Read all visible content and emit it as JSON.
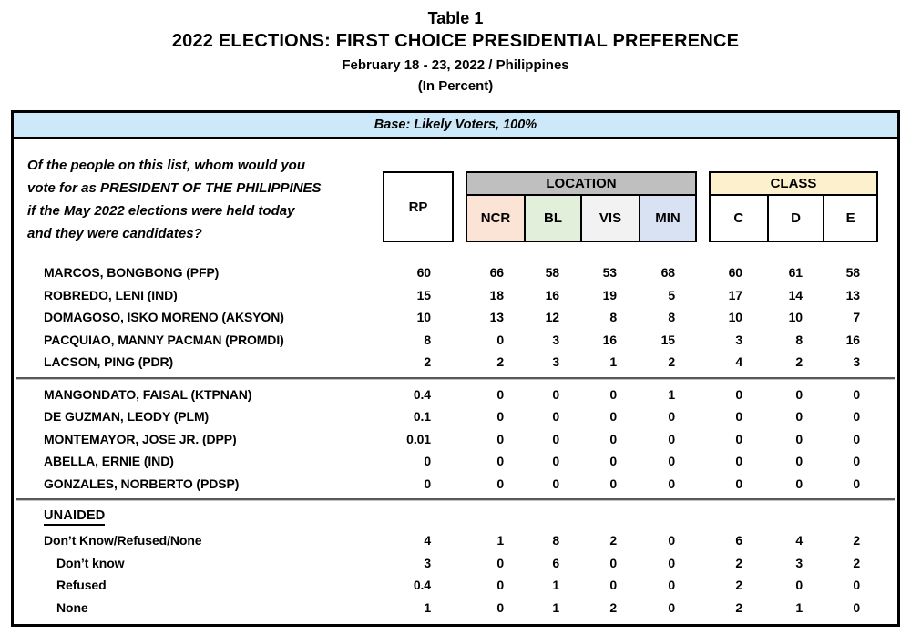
{
  "page_header": {
    "table_label": "Table 1",
    "title": "2022 ELECTIONS: FIRST CHOICE PRESIDENTIAL PREFERENCE",
    "subtitle": "February 18 - 23, 2022 / Philippines",
    "unit_note": "(In Percent)"
  },
  "base_label": "Base: Likely Voters, 100%",
  "question_lines": [
    "Of the people on this list, whom would you",
    "vote for as PRESIDENT OF THE PHILIPPINES",
    "if the May 2022 elections were held today",
    "and they were candidates?"
  ],
  "columns": {
    "rp_label": "RP",
    "location": {
      "label": "LOCATION",
      "subs": [
        "NCR",
        "BL",
        "VIS",
        "MIN"
      ]
    },
    "socio_class": {
      "label": "CLASS",
      "subs": [
        "C",
        "D",
        "E"
      ]
    }
  },
  "colors": {
    "base_bar_bg": "#cde8f8",
    "location_band_bg": "#bfbfbf",
    "ncr_bg": "#fbe4d5",
    "bl_bg": "#e2efda",
    "vis_bg": "#f2f2f2",
    "min_bg": "#d9e2f3",
    "class_band_bg": "#fcf0cd",
    "c_bg": "#ffffff",
    "d_bg": "#ffffff",
    "e_bg": "#ffffff"
  },
  "groups": [
    {
      "rows": [
        {
          "label": "MARCOS, BONGBONG (PFP)",
          "values": [
            "60",
            "66",
            "58",
            "53",
            "68",
            "60",
            "61",
            "58"
          ]
        },
        {
          "label": "ROBREDO, LENI (IND)",
          "values": [
            "15",
            "18",
            "16",
            "19",
            "5",
            "17",
            "14",
            "13"
          ]
        },
        {
          "label": "DOMAGOSO, ISKO MORENO (AKSYON)",
          "values": [
            "10",
            "13",
            "12",
            "8",
            "8",
            "10",
            "10",
            "7"
          ]
        },
        {
          "label": "PACQUIAO, MANNY PACMAN (PROMDI)",
          "values": [
            "8",
            "0",
            "3",
            "16",
            "15",
            "3",
            "8",
            "16"
          ]
        },
        {
          "label": "LACSON, PING (PDR)",
          "values": [
            "2",
            "2",
            "3",
            "1",
            "2",
            "4",
            "2",
            "3"
          ]
        }
      ]
    },
    {
      "rows": [
        {
          "label": "MANGONDATO, FAISAL (KTPNAN)",
          "values": [
            "0.4",
            "0",
            "0",
            "0",
            "1",
            "0",
            "0",
            "0"
          ]
        },
        {
          "label": "DE GUZMAN, LEODY (PLM)",
          "values": [
            "0.1",
            "0",
            "0",
            "0",
            "0",
            "0",
            "0",
            "0"
          ]
        },
        {
          "label": "MONTEMAYOR, JOSE JR. (DPP)",
          "values": [
            "0.01",
            "0",
            "0",
            "0",
            "0",
            "0",
            "0",
            "0"
          ]
        },
        {
          "label": "ABELLA, ERNIE (IND)",
          "values": [
            "0",
            "0",
            "0",
            "0",
            "0",
            "0",
            "0",
            "0"
          ]
        },
        {
          "label": "GONZALES, NORBERTO (PDSP)",
          "values": [
            "0",
            "0",
            "0",
            "0",
            "0",
            "0",
            "0",
            "0"
          ]
        }
      ]
    },
    {
      "heading": "UNAIDED",
      "rows": [
        {
          "label": "Don’t Know/Refused/None",
          "values": [
            "4",
            "1",
            "8",
            "2",
            "0",
            "6",
            "4",
            "2"
          ]
        },
        {
          "label": "Don’t know",
          "values": [
            "3",
            "0",
            "6",
            "0",
            "0",
            "2",
            "3",
            "2"
          ]
        },
        {
          "label": "Refused",
          "values": [
            "0.4",
            "0",
            "1",
            "0",
            "0",
            "2",
            "0",
            "0"
          ]
        },
        {
          "label": "None",
          "values": [
            "1",
            "0",
            "1",
            "2",
            "0",
            "2",
            "1",
            "0"
          ]
        }
      ]
    }
  ]
}
